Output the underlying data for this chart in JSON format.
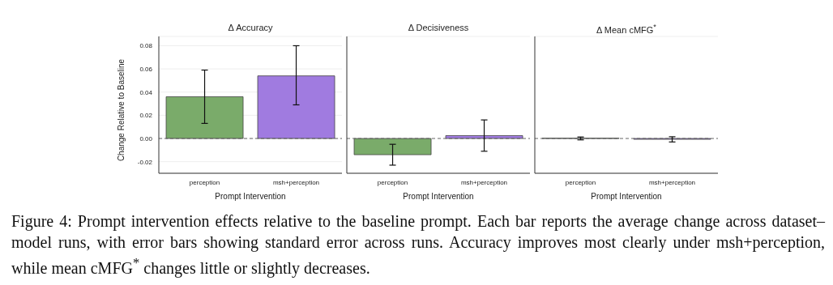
{
  "chart_data": [
    {
      "type": "bar",
      "title": "Δ Accuracy",
      "xlabel": "Prompt Intervention",
      "ylabel": "Change Relative to Baseline",
      "categories": [
        "perception",
        "msh+perception"
      ],
      "values": [
        0.036,
        0.054
      ],
      "colors": [
        "#7aab6a",
        "#a07be0"
      ],
      "errors": [
        [
          0.013,
          0.059
        ],
        [
          0.029,
          0.08
        ]
      ],
      "ylim": [
        -0.03,
        0.088
      ],
      "yticks": [
        -0.02,
        {
          "value": 0,
          "label": "0.00"
        },
        0.02,
        0.04,
        0.06,
        0.08
      ],
      "grid": "y",
      "ref_lines": [
        {
          "axis": "y",
          "value": 0,
          "line_style": "dashed"
        }
      ],
      "annotations": [
        "Figure 4: Prompt intervention effects relative to the baseline prompt. Each bar reports the average change across dataset–model runs, with error bars showing standard error across runs. Accuracy improves most clearly under msh+perception, while mean cMFG$^{*}$ changes little or slightly decreases."
      ]
    },
    {
      "type": "bar",
      "title": "Δ Decisiveness",
      "xlabel": "Prompt Intervention",
      "categories": [
        "perception",
        "msh+perception"
      ],
      "values": [
        -0.014,
        0.0025
      ],
      "colors": [
        "#7aab6a",
        "#a07be0"
      ],
      "errors": [
        [
          -0.023,
          -0.005
        ],
        [
          -0.011,
          0.016
        ]
      ],
      "ylim": [
        -0.03,
        0.088
      ],
      "yticks": [
        -0.02,
        0,
        0.02,
        0.04,
        0.06,
        0.08
      ],
      "tick_labels": "x",
      "grid": "y",
      "ref_lines": [
        {
          "axis": "y",
          "value": 0,
          "line_style": "dashed"
        }
      ]
    },
    {
      "type": "bar",
      "title": "Δ Mean cMFG$^{*}$",
      "xlabel": "Prompt Intervention",
      "categories": [
        "perception",
        "msh+perception"
      ],
      "values": [
        0.0002,
        -0.0007
      ],
      "colors": [
        "#7aab6a",
        "#a07be0"
      ],
      "errors": [
        [
          -0.0012,
          0.0013
        ],
        [
          -0.003,
          0.0015
        ]
      ],
      "ylim": [
        -0.03,
        0.088
      ],
      "yticks": [
        -0.02,
        0,
        0.02,
        0.04,
        0.06,
        0.08
      ],
      "tick_labels": "x",
      "grid": "y",
      "ref_lines": [
        {
          "axis": "y",
          "value": 0,
          "line_style": "dashed"
        }
      ]
    }
  ]
}
